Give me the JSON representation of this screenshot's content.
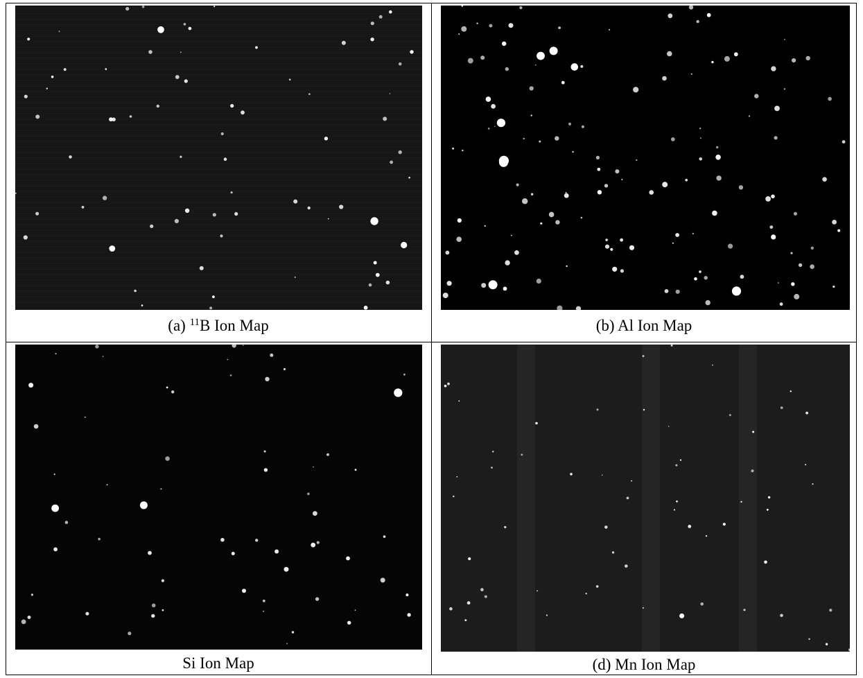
{
  "figure": {
    "cells": [
      {
        "caption_before": "(a)",
        "caption_sup": "11",
        "caption_after": "B Ion Map"
      },
      {
        "caption": "(b) Al Ion Map"
      },
      {
        "caption": "Si Ion Map"
      },
      {
        "caption": "(d) Mn Ion Map"
      }
    ]
  }
}
